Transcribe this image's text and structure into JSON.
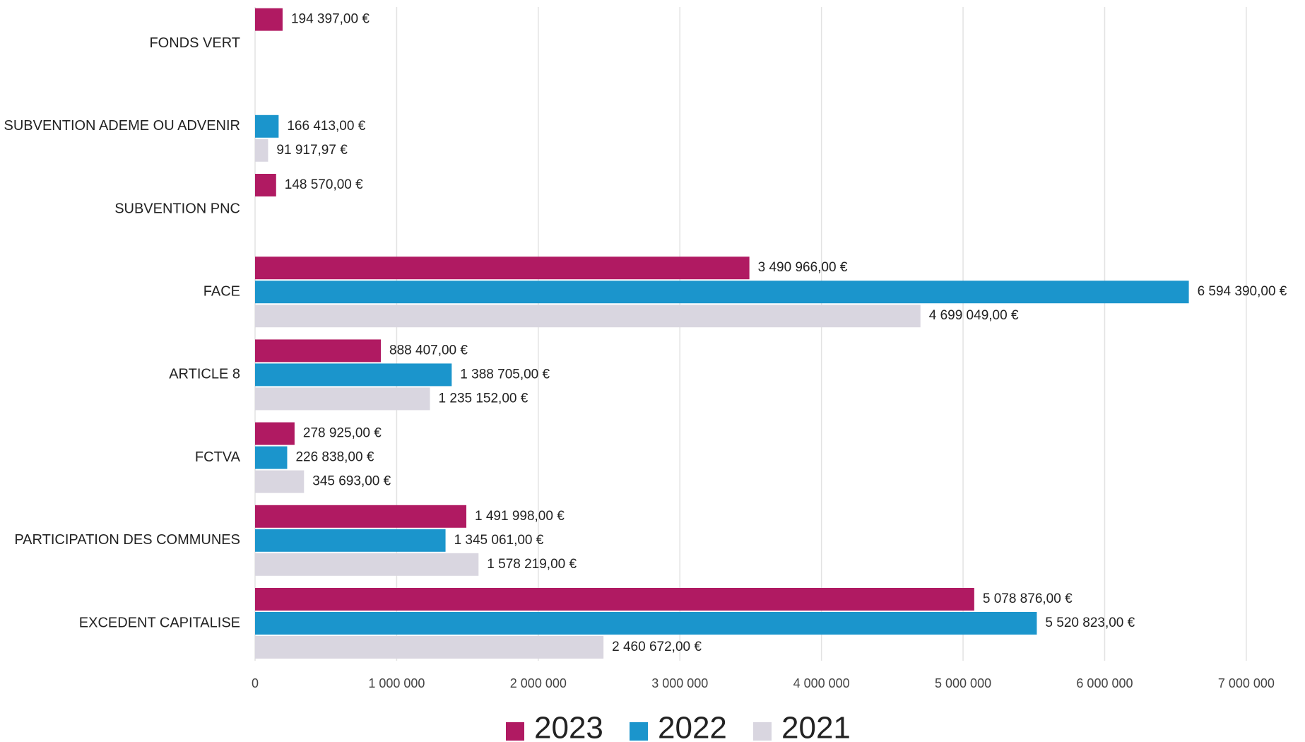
{
  "chart_data": {
    "type": "bar",
    "orientation": "horizontal",
    "categories": [
      "FONDS VERT",
      "SUBVENTION ADEME OU ADVENIR",
      "SUBVENTION PNC",
      "FACE",
      "ARTICLE 8",
      "FCTVA",
      "PARTICIPATION DES COMMUNES",
      "EXCEDENT CAPITALISE"
    ],
    "series": [
      {
        "name": "2023",
        "color": "#b01a62",
        "values": [
          194397,
          null,
          148570,
          3490966,
          888407,
          278925,
          1491998,
          5078876
        ],
        "value_labels": [
          "194 397,00 €",
          null,
          "148 570,00 €",
          "3 490 966,00 €",
          "888 407,00 €",
          "278 925,00 €",
          "1 491 998,00 €",
          "5 078 876,00 €"
        ]
      },
      {
        "name": "2022",
        "color": "#1b95cc",
        "values": [
          null,
          166413,
          null,
          6594390,
          1388705,
          226838,
          1345061,
          5520823
        ],
        "value_labels": [
          null,
          "166 413,00 €",
          null,
          "6 594 390,00 €",
          "1 388 705,00 €",
          "226 838,00 €",
          "1 345 061,00 €",
          "5 520 823,00 €"
        ]
      },
      {
        "name": "2021",
        "color": "#d9d6e0",
        "values": [
          null,
          91917.97,
          null,
          4699049,
          1235152,
          345693,
          1578219,
          2460672
        ],
        "value_labels": [
          null,
          "91 917,97 €",
          null,
          "4 699 049,00 €",
          "1 235 152,00 €",
          "345 693,00 €",
          "1 578 219,00 €",
          "2 460 672,00 €"
        ]
      }
    ],
    "xlim": [
      0,
      7300000
    ],
    "xticks": [
      0,
      {
        "value": 1000000,
        "label": "1 000 000"
      },
      {
        "value": 2000000,
        "label": "2 000 000"
      },
      {
        "value": 3000000,
        "label": "3 000 000"
      },
      {
        "value": 4000000,
        "label": "4 000 000"
      },
      {
        "value": 5000000,
        "label": "5 000 000"
      },
      {
        "value": 6000000,
        "label": "6 000 000"
      },
      {
        "value": 7000000,
        "label": "7 000 000"
      }
    ],
    "grid": true,
    "legend": "bottom"
  }
}
